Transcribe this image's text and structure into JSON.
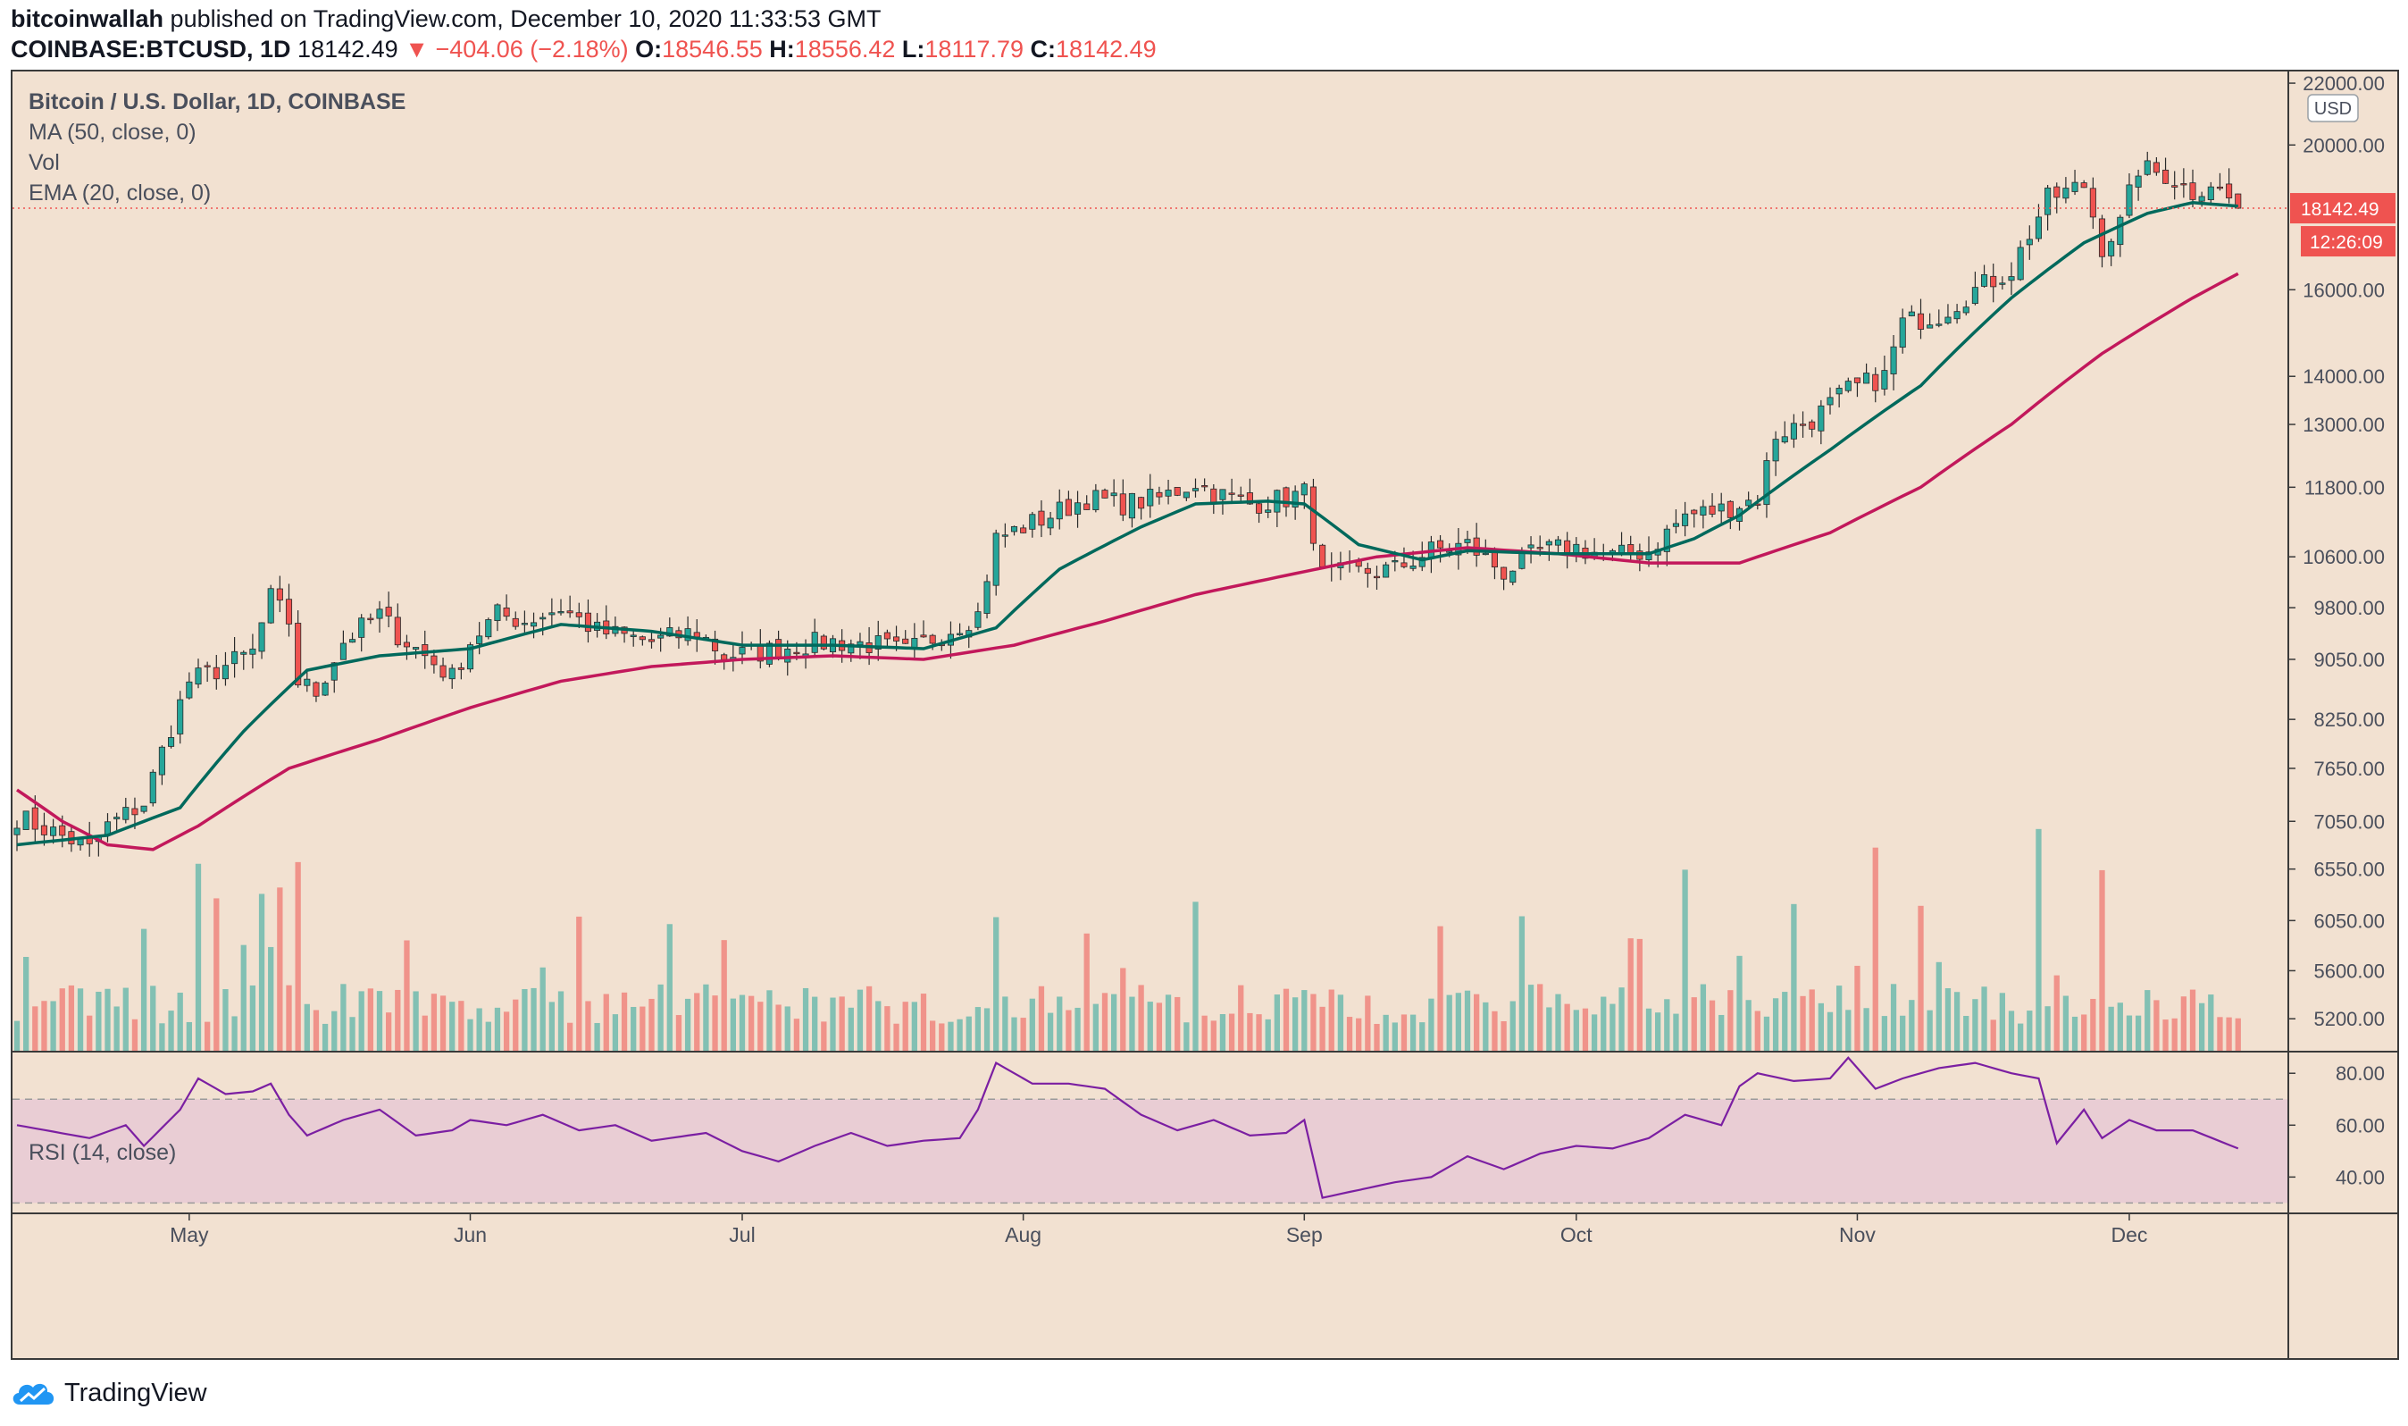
{
  "header": {
    "author": "bitcoinwallah",
    "published_text": "published on TradingView.com, December 10, 2020 11:33:53 GMT",
    "symbol": "COINBASE:BTCUSD, 1D",
    "last": "18142.49",
    "change_arrow": "▼",
    "change": "−404.06 (−2.18%)",
    "open_label": "O:",
    "open": "18546.55",
    "high_label": "H:",
    "high": "18556.42",
    "low_label": "L:",
    "low": "18117.79",
    "close_label": "C:",
    "close": "18142.49"
  },
  "legend": {
    "title": "Bitcoin / U.S. Dollar, 1D, COINBASE",
    "ma": "MA (50, close, 0)",
    "vol": "Vol",
    "ema": "EMA (20, close, 0)",
    "rsi": "RSI (14, close)"
  },
  "price_tag": {
    "value": "18142.49",
    "countdown": "12:26:09",
    "currency": "USD"
  },
  "footer": {
    "brand": "TradingView"
  },
  "colors": {
    "up": "#26a69a",
    "down": "#ef5350",
    "ma": "#c2185b",
    "ema": "#00695c",
    "rsi": "#7b1fa2",
    "background": "#f2e1d1"
  },
  "chart_data": {
    "type": "candlestick",
    "title": "Bitcoin / U.S. Dollar, 1D, COINBASE",
    "y_scale": "log",
    "price_ticks": [
      22000,
      20000,
      16000,
      14000,
      13000,
      11800,
      10600,
      9800,
      9050,
      8250,
      7650,
      7050,
      6550,
      6050,
      5600,
      5200
    ],
    "price_tick_labels": [
      "22000.00",
      "20000.00",
      "16000.00",
      "14000.00",
      "13000.00",
      "11800.00",
      "10600.00",
      "9800.00",
      "9050.00",
      "8250.00",
      "7650.00",
      "7050.00",
      "6550.00",
      "6050.00",
      "5600.00",
      "5200.00"
    ],
    "ylim_price": [
      4950,
      22400
    ],
    "rsi_ticks": [
      80,
      60,
      40
    ],
    "rsi_tick_labels": [
      "80.00",
      "60.00",
      "40.00"
    ],
    "rsi_band": [
      30,
      70
    ],
    "ylim_rsi": [
      26,
      88
    ],
    "x_labels": [
      "May",
      "Jun",
      "Jul",
      "Aug",
      "Sep",
      "Oct",
      "Nov",
      "Dec"
    ],
    "x_label_day_index": [
      19,
      50,
      80,
      111,
      142,
      172,
      203,
      233
    ],
    "days_shown": 248,
    "anchors": {
      "close": [
        [
          0,
          7100
        ],
        [
          6,
          6850
        ],
        [
          8,
          6750
        ],
        [
          10,
          7000
        ],
        [
          14,
          7250
        ],
        [
          19,
          8750
        ],
        [
          22,
          8900
        ],
        [
          26,
          9150
        ],
        [
          28,
          9950
        ],
        [
          30,
          9600
        ],
        [
          31,
          8750
        ],
        [
          33,
          8600
        ],
        [
          36,
          9300
        ],
        [
          40,
          9700
        ],
        [
          42,
          9400
        ],
        [
          45,
          9100
        ],
        [
          48,
          8800
        ],
        [
          50,
          9300
        ],
        [
          53,
          9700
        ],
        [
          56,
          9600
        ],
        [
          60,
          9800
        ],
        [
          64,
          9450
        ],
        [
          70,
          9300
        ],
        [
          75,
          9450
        ],
        [
          78,
          9100
        ],
        [
          82,
          9150
        ],
        [
          86,
          9250
        ],
        [
          90,
          9300
        ],
        [
          95,
          9250
        ],
        [
          98,
          9150
        ],
        [
          101,
          9350
        ],
        [
          106,
          9700
        ],
        [
          108,
          10900
        ],
        [
          111,
          11100
        ],
        [
          114,
          11300
        ],
        [
          118,
          11600
        ],
        [
          122,
          11500
        ],
        [
          126,
          11600
        ],
        [
          130,
          11900
        ],
        [
          132,
          11700
        ],
        [
          136,
          11500
        ],
        [
          140,
          11600
        ],
        [
          142,
          11700
        ],
        [
          144,
          10300
        ],
        [
          148,
          10350
        ],
        [
          152,
          10400
        ],
        [
          156,
          10700
        ],
        [
          160,
          10800
        ],
        [
          164,
          10350
        ],
        [
          168,
          10700
        ],
        [
          172,
          10750
        ],
        [
          176,
          10600
        ],
        [
          180,
          10700
        ],
        [
          184,
          11300
        ],
        [
          188,
          11400
        ],
        [
          192,
          11600
        ],
        [
          194,
          12800
        ],
        [
          198,
          13100
        ],
        [
          202,
          13700
        ],
        [
          206,
          14000
        ],
        [
          208,
          15200
        ],
        [
          212,
          15400
        ],
        [
          216,
          16000
        ],
        [
          220,
          16500
        ],
        [
          224,
          18400
        ],
        [
          228,
          18800
        ],
        [
          230,
          17100
        ],
        [
          232,
          17700
        ],
        [
          234,
          19300
        ],
        [
          237,
          19100
        ],
        [
          240,
          18600
        ],
        [
          242,
          18900
        ],
        [
          245,
          18142.49
        ]
      ],
      "ma50": [
        [
          0,
          7400
        ],
        [
          5,
          7050
        ],
        [
          10,
          6800
        ],
        [
          15,
          6750
        ],
        [
          20,
          7000
        ],
        [
          30,
          7650
        ],
        [
          40,
          8000
        ],
        [
          50,
          8400
        ],
        [
          60,
          8750
        ],
        [
          70,
          8950
        ],
        [
          80,
          9050
        ],
        [
          90,
          9100
        ],
        [
          100,
          9050
        ],
        [
          110,
          9250
        ],
        [
          120,
          9600
        ],
        [
          130,
          10000
        ],
        [
          140,
          10300
        ],
        [
          150,
          10600
        ],
        [
          160,
          10750
        ],
        [
          170,
          10650
        ],
        [
          180,
          10500
        ],
        [
          190,
          10500
        ],
        [
          200,
          11000
        ],
        [
          210,
          11800
        ],
        [
          220,
          13000
        ],
        [
          230,
          14500
        ],
        [
          240,
          15800
        ],
        [
          245,
          16400
        ]
      ],
      "ema20": [
        [
          0,
          6800
        ],
        [
          10,
          6900
        ],
        [
          18,
          7200
        ],
        [
          25,
          8100
        ],
        [
          32,
          8900
        ],
        [
          40,
          9100
        ],
        [
          50,
          9200
        ],
        [
          60,
          9550
        ],
        [
          70,
          9450
        ],
        [
          80,
          9250
        ],
        [
          90,
          9250
        ],
        [
          100,
          9200
        ],
        [
          108,
          9500
        ],
        [
          115,
          10400
        ],
        [
          124,
          11100
        ],
        [
          130,
          11500
        ],
        [
          138,
          11550
        ],
        [
          142,
          11500
        ],
        [
          148,
          10800
        ],
        [
          155,
          10550
        ],
        [
          160,
          10700
        ],
        [
          170,
          10650
        ],
        [
          180,
          10650
        ],
        [
          185,
          10900
        ],
        [
          190,
          11300
        ],
        [
          200,
          12500
        ],
        [
          210,
          13800
        ],
        [
          220,
          15800
        ],
        [
          228,
          17200
        ],
        [
          235,
          18000
        ],
        [
          240,
          18300
        ],
        [
          245,
          18200
        ]
      ],
      "rsi": [
        [
          0,
          60
        ],
        [
          8,
          55
        ],
        [
          12,
          60
        ],
        [
          14,
          52
        ],
        [
          18,
          66
        ],
        [
          20,
          78
        ],
        [
          23,
          72
        ],
        [
          26,
          73
        ],
        [
          28,
          76
        ],
        [
          30,
          64
        ],
        [
          32,
          56
        ],
        [
          36,
          62
        ],
        [
          40,
          66
        ],
        [
          44,
          56
        ],
        [
          48,
          58
        ],
        [
          50,
          62
        ],
        [
          54,
          60
        ],
        [
          58,
          64
        ],
        [
          62,
          58
        ],
        [
          66,
          60
        ],
        [
          70,
          54
        ],
        [
          76,
          57
        ],
        [
          80,
          50
        ],
        [
          84,
          46
        ],
        [
          88,
          52
        ],
        [
          92,
          57
        ],
        [
          96,
          52
        ],
        [
          100,
          54
        ],
        [
          104,
          55
        ],
        [
          106,
          66
        ],
        [
          108,
          84
        ],
        [
          110,
          80
        ],
        [
          112,
          76
        ],
        [
          116,
          76
        ],
        [
          120,
          74
        ],
        [
          124,
          64
        ],
        [
          128,
          58
        ],
        [
          132,
          62
        ],
        [
          136,
          56
        ],
        [
          140,
          57
        ],
        [
          142,
          62
        ],
        [
          144,
          32
        ],
        [
          148,
          35
        ],
        [
          152,
          38
        ],
        [
          156,
          40
        ],
        [
          160,
          48
        ],
        [
          164,
          43
        ],
        [
          168,
          49
        ],
        [
          172,
          52
        ],
        [
          176,
          51
        ],
        [
          180,
          55
        ],
        [
          184,
          64
        ],
        [
          188,
          60
        ],
        [
          190,
          75
        ],
        [
          192,
          80
        ],
        [
          196,
          77
        ],
        [
          200,
          78
        ],
        [
          202,
          86
        ],
        [
          205,
          74
        ],
        [
          208,
          78
        ],
        [
          212,
          82
        ],
        [
          216,
          84
        ],
        [
          220,
          80
        ],
        [
          223,
          78
        ],
        [
          225,
          53
        ],
        [
          228,
          66
        ],
        [
          230,
          55
        ],
        [
          233,
          62
        ],
        [
          236,
          58
        ],
        [
          240,
          58
        ],
        [
          245,
          51
        ]
      ]
    }
  }
}
